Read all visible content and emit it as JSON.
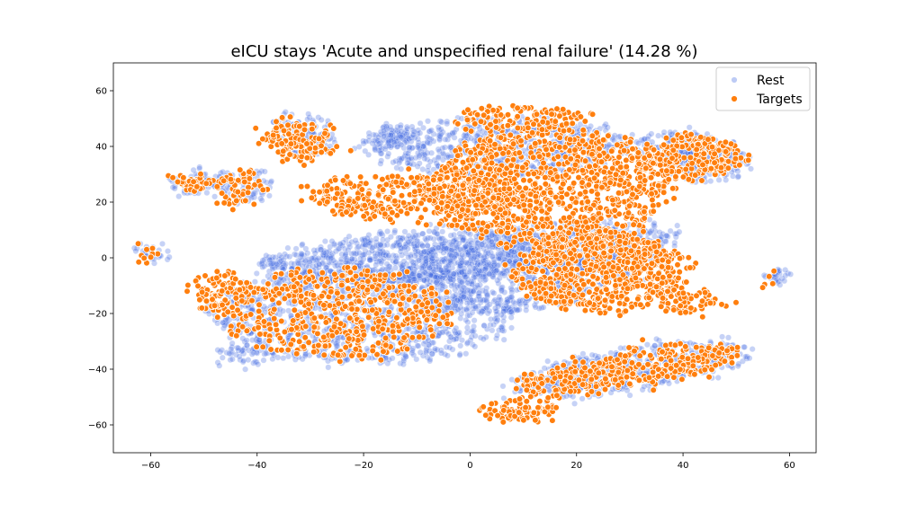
{
  "chart_data": {
    "type": "scatter",
    "title": "eICU stays 'Acute and unspecified renal failure' (14.28 %)",
    "xlabel": "",
    "ylabel": "",
    "xlim": [
      -67,
      65
    ],
    "ylim": [
      -70,
      70
    ],
    "x_ticks": [
      -60,
      -40,
      -20,
      0,
      20,
      40,
      60
    ],
    "y_ticks": [
      -60,
      -40,
      -20,
      0,
      20,
      40,
      60
    ],
    "x_tick_labels": [
      "−60",
      "−40",
      "−20",
      "0",
      "20",
      "40",
      "60"
    ],
    "y_tick_labels": [
      "−60",
      "−40",
      "−20",
      "0",
      "20",
      "40",
      "60"
    ],
    "grid": false,
    "legend_position": "top-right",
    "series": [
      {
        "name": "Rest",
        "color": "#4169e1",
        "alpha": 0.3,
        "clusters": [
          {
            "cx": 0,
            "cy": 2,
            "rx": 40,
            "ry": 9,
            "rot": 8,
            "n": 1200
          },
          {
            "cx": 5,
            "cy": 40,
            "rx": 25,
            "ry": 10,
            "rot": 0,
            "n": 700
          },
          {
            "cx": -20,
            "cy": -20,
            "rx": 28,
            "ry": 18,
            "rot": 0,
            "n": 1100
          },
          {
            "cx": 10,
            "cy": -5,
            "rx": 25,
            "ry": 14,
            "rot": 12,
            "n": 800
          },
          {
            "cx": 30,
            "cy": -40,
            "rx": 24,
            "ry": 7,
            "rot": 18,
            "n": 520
          },
          {
            "cx": 40,
            "cy": 40,
            "rx": 8,
            "ry": 5,
            "rot": 0,
            "n": 160
          },
          {
            "cx": 45,
            "cy": 34,
            "rx": 7,
            "ry": 7,
            "rot": 0,
            "n": 140
          },
          {
            "cx": -31,
            "cy": 44,
            "rx": 5,
            "ry": 7,
            "rot": 20,
            "n": 120
          },
          {
            "cx": -42,
            "cy": 25,
            "rx": 4,
            "ry": 6,
            "rot": 0,
            "n": 70
          },
          {
            "cx": -50,
            "cy": 27,
            "rx": 6,
            "ry": 4,
            "rot": 0,
            "n": 70
          },
          {
            "cx": -15,
            "cy": 44,
            "rx": 3,
            "ry": 4,
            "rot": 0,
            "n": 50
          },
          {
            "cx": -60,
            "cy": 2,
            "rx": 2,
            "ry": 3,
            "rot": 0,
            "n": 30
          },
          {
            "cx": 57,
            "cy": -7,
            "rx": 2,
            "ry": 2,
            "rot": 0,
            "n": 28
          },
          {
            "cx": -43,
            "cy": -35,
            "rx": 4,
            "ry": 4,
            "rot": 0,
            "n": 50
          }
        ]
      },
      {
        "name": "Targets",
        "color": "#ff7f0e",
        "alpha": 1.0,
        "clusters": [
          {
            "cx": 15,
            "cy": 25,
            "rx": 22,
            "ry": 22,
            "rot": 0,
            "n": 1100
          },
          {
            "cx": 25,
            "cy": -5,
            "rx": 16,
            "ry": 14,
            "rot": 0,
            "n": 700
          },
          {
            "cx": -10,
            "cy": 22,
            "rx": 20,
            "ry": 8,
            "rot": 0,
            "n": 400
          },
          {
            "cx": -25,
            "cy": -20,
            "rx": 22,
            "ry": 16,
            "rot": 0,
            "n": 550
          },
          {
            "cx": 30,
            "cy": -40,
            "rx": 22,
            "ry": 6,
            "rot": 18,
            "n": 380
          },
          {
            "cx": 42,
            "cy": 36,
            "rx": 9,
            "ry": 8,
            "rot": 0,
            "n": 240
          },
          {
            "cx": -32,
            "cy": 42,
            "rx": 6,
            "ry": 8,
            "rot": 25,
            "n": 150
          },
          {
            "cx": -43,
            "cy": 25,
            "rx": 4,
            "ry": 6,
            "rot": 0,
            "n": 60
          },
          {
            "cx": -52,
            "cy": 27,
            "rx": 4,
            "ry": 3,
            "rot": 0,
            "n": 40
          },
          {
            "cx": 10,
            "cy": 50,
            "rx": 12,
            "ry": 4,
            "rot": 0,
            "n": 120
          },
          {
            "cx": 42,
            "cy": -16,
            "rx": 6,
            "ry": 4,
            "rot": 0,
            "n": 60
          },
          {
            "cx": -47,
            "cy": -12,
            "rx": 5,
            "ry": 8,
            "rot": 0,
            "n": 90
          },
          {
            "cx": 10,
            "cy": -55,
            "rx": 8,
            "ry": 3,
            "rot": 0,
            "n": 80
          },
          {
            "cx": -60,
            "cy": 2,
            "rx": 1.5,
            "ry": 2,
            "rot": 0,
            "n": 10
          },
          {
            "cx": 57,
            "cy": -8,
            "rx": 1,
            "ry": 1,
            "rot": 0,
            "n": 5
          }
        ]
      }
    ]
  }
}
